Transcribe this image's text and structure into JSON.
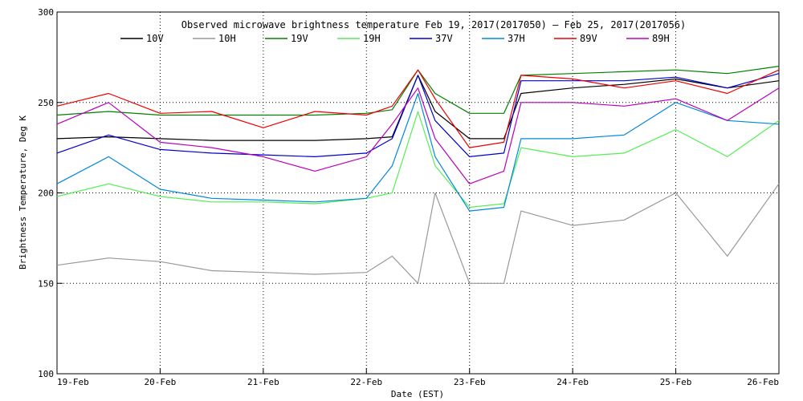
{
  "chart_data": {
    "type": "line",
    "title": "Observed microwave brightness temperature Feb 19, 2017(2017050) – Feb 25, 2017(2017056)",
    "xlabel": "Date (EST)",
    "ylabel": "Brightness Temperature, Deg K",
    "xlim": [
      "19-Feb",
      "26-Feb"
    ],
    "ylim": [
      100,
      300
    ],
    "x_ticks": [
      "19-Feb",
      "20-Feb",
      "21-Feb",
      "22-Feb",
      "23-Feb",
      "24-Feb",
      "25-Feb",
      "26-Feb"
    ],
    "y_ticks": [
      100,
      150,
      200,
      250,
      300
    ],
    "grid": "dotted",
    "legend_position": "top",
    "x": [
      "19-Feb 00:00",
      "19-Feb 12:00",
      "20-Feb 00:00",
      "20-Feb 12:00",
      "21-Feb 00:00",
      "21-Feb 12:00",
      "22-Feb 00:00",
      "22-Feb 06:00",
      "22-Feb 12:00",
      "22-Feb 16:00",
      "23-Feb 00:00",
      "23-Feb 08:00",
      "23-Feb 12:00",
      "24-Feb 00:00",
      "24-Feb 12:00",
      "25-Feb 00:00",
      "25-Feb 12:00",
      "26-Feb 00:00"
    ],
    "series": [
      {
        "name": "10V",
        "color": "#000000",
        "values": [
          230,
          231,
          230,
          229,
          229,
          229,
          230,
          231,
          265,
          245,
          230,
          230,
          255,
          258,
          260,
          263,
          258,
          262
        ]
      },
      {
        "name": "10H",
        "color": "#999999",
        "values": [
          160,
          164,
          162,
          157,
          156,
          155,
          156,
          165,
          150,
          200,
          150,
          150,
          190,
          182,
          185,
          200,
          165,
          205
        ]
      },
      {
        "name": "19V",
        "color": "#008000",
        "values": [
          243,
          245,
          243,
          243,
          243,
          243,
          244,
          246,
          268,
          255,
          244,
          244,
          265,
          266,
          267,
          268,
          266,
          270
        ]
      },
      {
        "name": "19H",
        "color": "#55ee55",
        "values": [
          198,
          205,
          198,
          195,
          195,
          194,
          197,
          200,
          245,
          215,
          192,
          194,
          225,
          220,
          222,
          235,
          220,
          240
        ]
      },
      {
        "name": "37V",
        "color": "#0000cc",
        "values": [
          222,
          232,
          224,
          222,
          221,
          220,
          222,
          230,
          265,
          240,
          220,
          222,
          262,
          262,
          262,
          264,
          258,
          266
        ]
      },
      {
        "name": "37H",
        "color": "#0088dd",
        "values": [
          205,
          220,
          202,
          197,
          196,
          195,
          197,
          215,
          255,
          220,
          190,
          192,
          230,
          230,
          232,
          250,
          240,
          238
        ]
      },
      {
        "name": "89V",
        "color": "#ee0000",
        "values": [
          248,
          255,
          244,
          245,
          236,
          245,
          243,
          248,
          268,
          252,
          225,
          228,
          265,
          263,
          258,
          262,
          255,
          268
        ]
      },
      {
        "name": "89H",
        "color": "#bb00bb",
        "values": [
          238,
          250,
          228,
          225,
          220,
          212,
          220,
          238,
          258,
          230,
          205,
          212,
          250,
          250,
          248,
          252,
          240,
          258
        ]
      }
    ]
  }
}
